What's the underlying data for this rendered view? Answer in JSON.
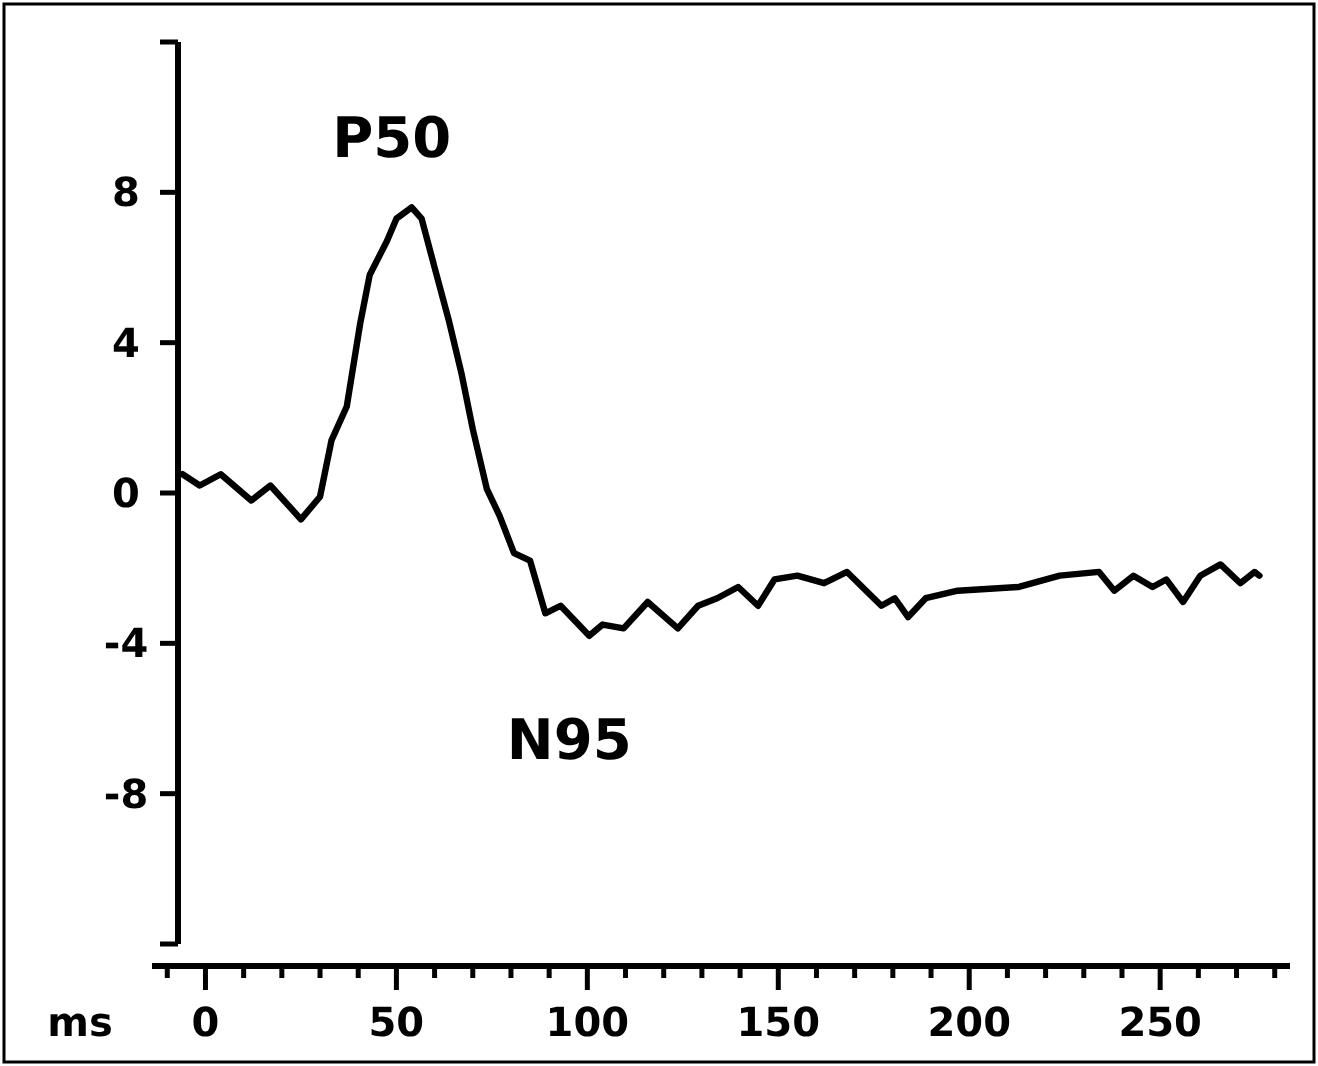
{
  "chart_data": {
    "type": "line",
    "xlabel": "ms",
    "x": [
      -6,
      -1.5,
      4,
      12,
      17,
      25,
      30,
      33,
      37,
      40.5,
      43,
      47.5,
      50,
      54,
      56.6,
      60,
      63.7,
      67,
      70,
      73.7,
      77,
      80.8,
      85,
      89,
      93,
      100.5,
      104,
      109.5,
      115.8,
      123.7,
      129,
      134,
      139.5,
      144.7,
      149,
      155,
      162,
      168,
      177,
      180.5,
      184,
      188.6,
      197,
      213,
      223.7,
      234,
      238,
      243,
      248,
      251.6,
      256,
      260.5,
      265.8,
      271,
      274.7,
      276
    ],
    "series": [
      {
        "color": "#000000",
        "values": [
          0.5,
          0.2,
          0.5,
          -0.2,
          0.2,
          -0.7,
          -0.1,
          1.4,
          2.3,
          4.5,
          5.8,
          6.7,
          7.3,
          7.6,
          7.3,
          6.0,
          4.6,
          3.2,
          1.7,
          0.1,
          -0.6,
          -1.6,
          -1.8,
          -3.2,
          -3.0,
          -3.8,
          -3.5,
          -3.6,
          -2.9,
          -3.6,
          -3.0,
          -2.8,
          -2.5,
          -3.0,
          -2.3,
          -2.2,
          -2.4,
          -2.1,
          -3.0,
          -2.8,
          -3.3,
          -2.8,
          -2.6,
          -2.5,
          -2.2,
          -2.1,
          -2.6,
          -2.2,
          -2.5,
          -2.3,
          -2.9,
          -2.2,
          -1.9,
          -2.4,
          -2.1,
          -2.2
        ]
      }
    ],
    "xlim": [
      -14,
      284
    ],
    "ylim": [
      -12,
      12
    ],
    "xticks": [
      {
        "value": -10,
        "label": null
      },
      0,
      {
        "value": 10,
        "label": null
      },
      {
        "value": 20,
        "label": null
      },
      {
        "value": 30,
        "label": null
      },
      {
        "value": 40,
        "label": null
      },
      50,
      {
        "value": 60,
        "label": null
      },
      {
        "value": 70,
        "label": null
      },
      {
        "value": 80,
        "label": null
      },
      {
        "value": 90,
        "label": null
      },
      100,
      {
        "value": 110,
        "label": null
      },
      {
        "value": 120,
        "label": null
      },
      {
        "value": 130,
        "label": null
      },
      {
        "value": 140,
        "label": null
      },
      150,
      {
        "value": 160,
        "label": null
      },
      {
        "value": 170,
        "label": null
      },
      {
        "value": 180,
        "label": null
      },
      {
        "value": 190,
        "label": null
      },
      200,
      {
        "value": 210,
        "label": null
      },
      {
        "value": 220,
        "label": null
      },
      {
        "value": 230,
        "label": null
      },
      {
        "value": 240,
        "label": null
      },
      250,
      {
        "value": 260,
        "label": null
      },
      {
        "value": 270,
        "label": null
      },
      {
        "value": 280,
        "label": null
      }
    ],
    "yticks": [
      {
        "value": -12,
        "label": null
      },
      -8,
      -4,
      0,
      4,
      8,
      {
        "value": 12,
        "label": null
      }
    ],
    "annotations": [
      {
        "text": "P50",
        "x": 54,
        "y": 7.6
      },
      {
        "text": "N95",
        "x": 100.5,
        "y": -3.8
      }
    ],
    "grid": false,
    "marker": "none",
    "line_style": "solid"
  }
}
